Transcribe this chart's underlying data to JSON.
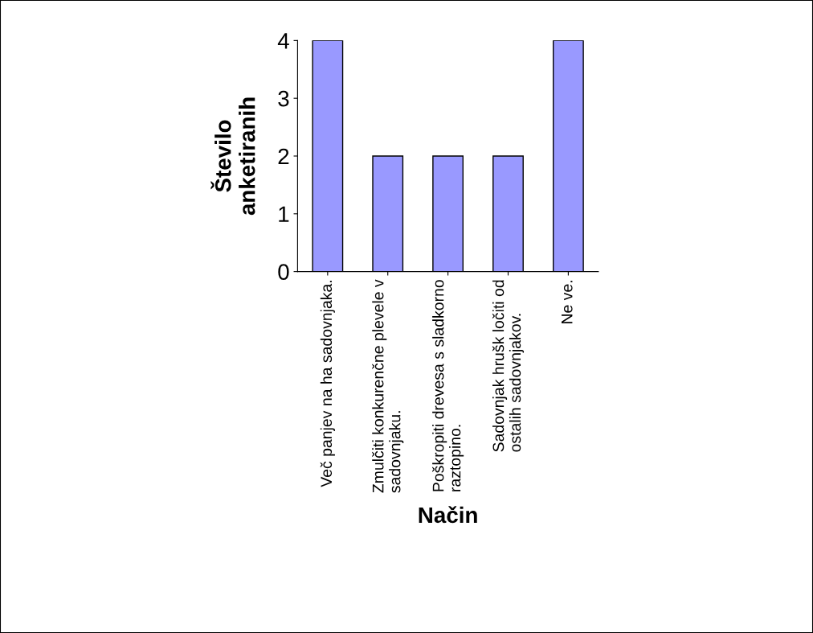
{
  "chart_data": {
    "type": "bar",
    "categories": [
      "Več panjev na ha sadovnjaka.",
      "Zmulčiti konkurenčne plevele v\nsadovnjaku.",
      "Poškropiti drevesa s sladkorno\nraztopino.",
      "Sadovnjak hrušk ločiti od\nostalih sadovnjakov.",
      "Ne ve."
    ],
    "values": [
      4,
      2,
      2,
      2,
      4
    ],
    "color": "#9999ff",
    "xlabel": "Način",
    "ylabel": "Število\nanketiranih",
    "ylim": [
      0,
      4
    ],
    "yticks": [
      0,
      1,
      2,
      3,
      4
    ],
    "grid": false,
    "legend": false
  }
}
